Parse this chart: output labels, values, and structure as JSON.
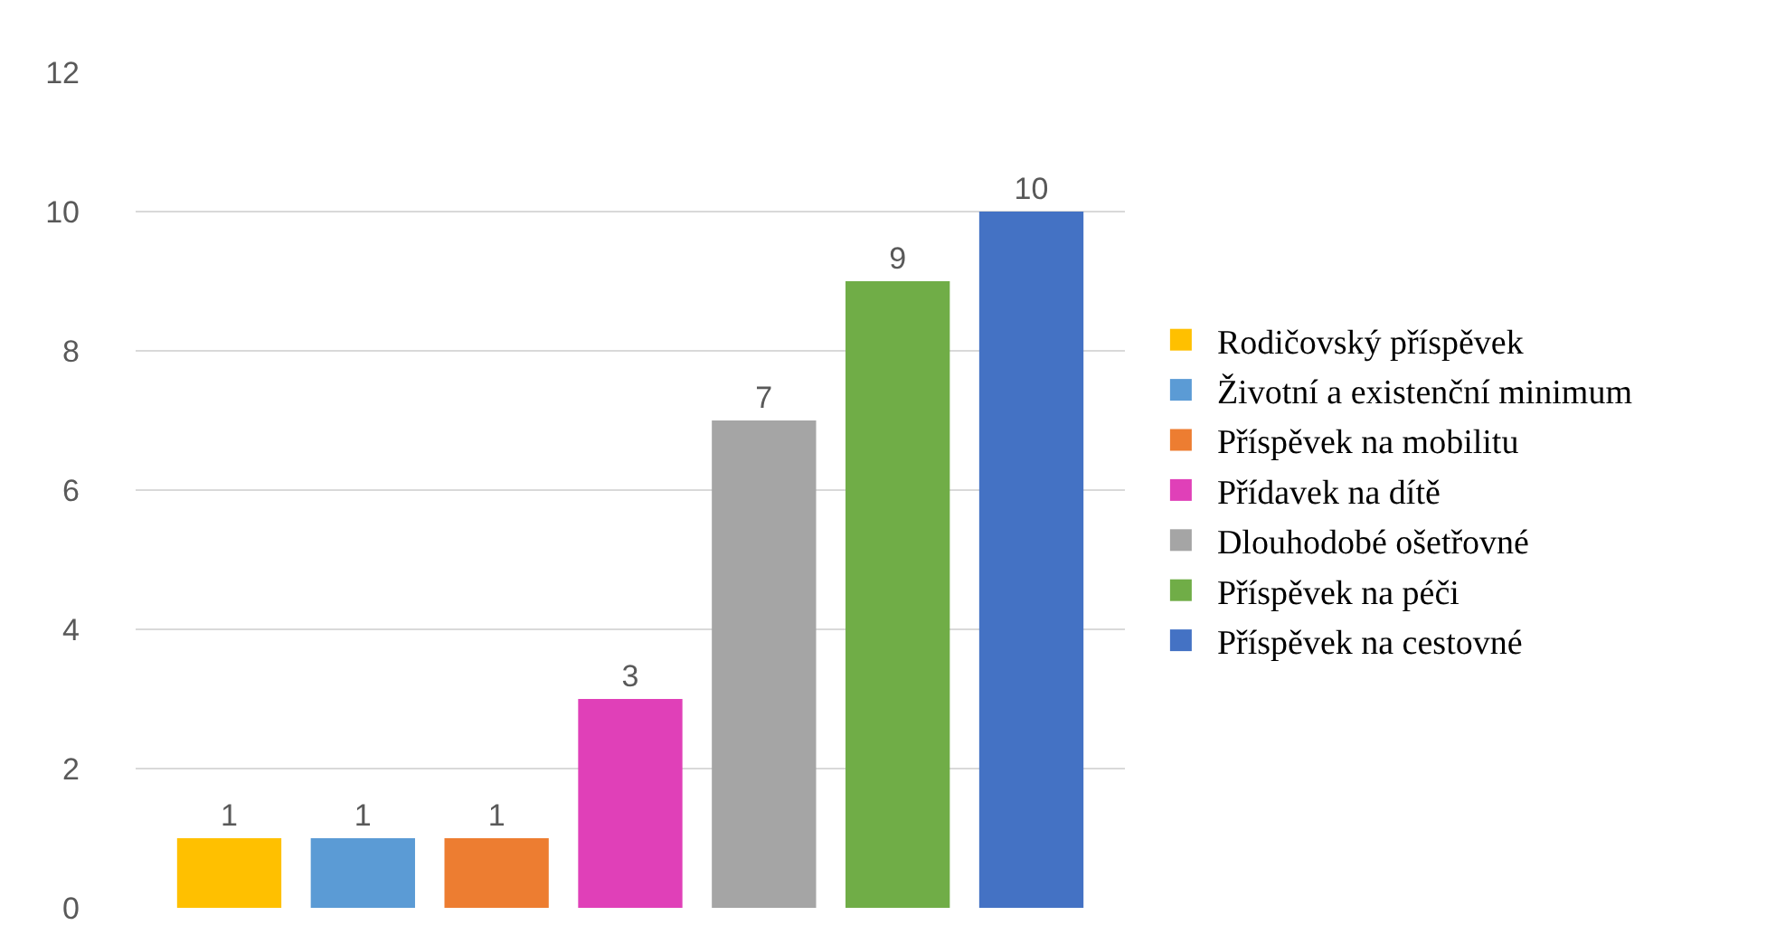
{
  "chart_data": {
    "type": "bar",
    "categories": [
      null,
      null,
      null,
      null,
      null,
      null,
      null
    ],
    "series": [
      {
        "name": "Rodičovský příspěvek",
        "color": "#ffc000",
        "values": [
          1,
          null,
          null,
          null,
          null,
          null,
          null
        ]
      },
      {
        "name": "Životní a existenční minimum",
        "color": "#5b9bd5",
        "values": [
          null,
          1,
          null,
          null,
          null,
          null,
          null
        ]
      },
      {
        "name": "Příspěvek na mobilitu",
        "color": "#ed7d31",
        "values": [
          null,
          null,
          1,
          null,
          null,
          null,
          null
        ]
      },
      {
        "name": "Přídavek na dítě",
        "color": "#e040b8",
        "values": [
          null,
          null,
          null,
          3,
          null,
          null,
          null
        ]
      },
      {
        "name": "Dlouhodobé ošetřovné",
        "color": "#a5a5a5",
        "values": [
          null,
          null,
          null,
          null,
          7,
          null,
          null
        ]
      },
      {
        "name": "Příspěvek na péči",
        "color": "#70ad47",
        "values": [
          null,
          null,
          null,
          null,
          null,
          9,
          null
        ]
      },
      {
        "name": "Příspěvek na cestovné",
        "color": "#4472c4",
        "values": [
          null,
          null,
          null,
          null,
          null,
          null,
          10
        ]
      }
    ],
    "ylim": [
      0,
      12
    ],
    "yticks": [
      0,
      2,
      4,
      6,
      8,
      10,
      12
    ],
    "grid": "y",
    "legend": "right",
    "data_labels": true
  }
}
